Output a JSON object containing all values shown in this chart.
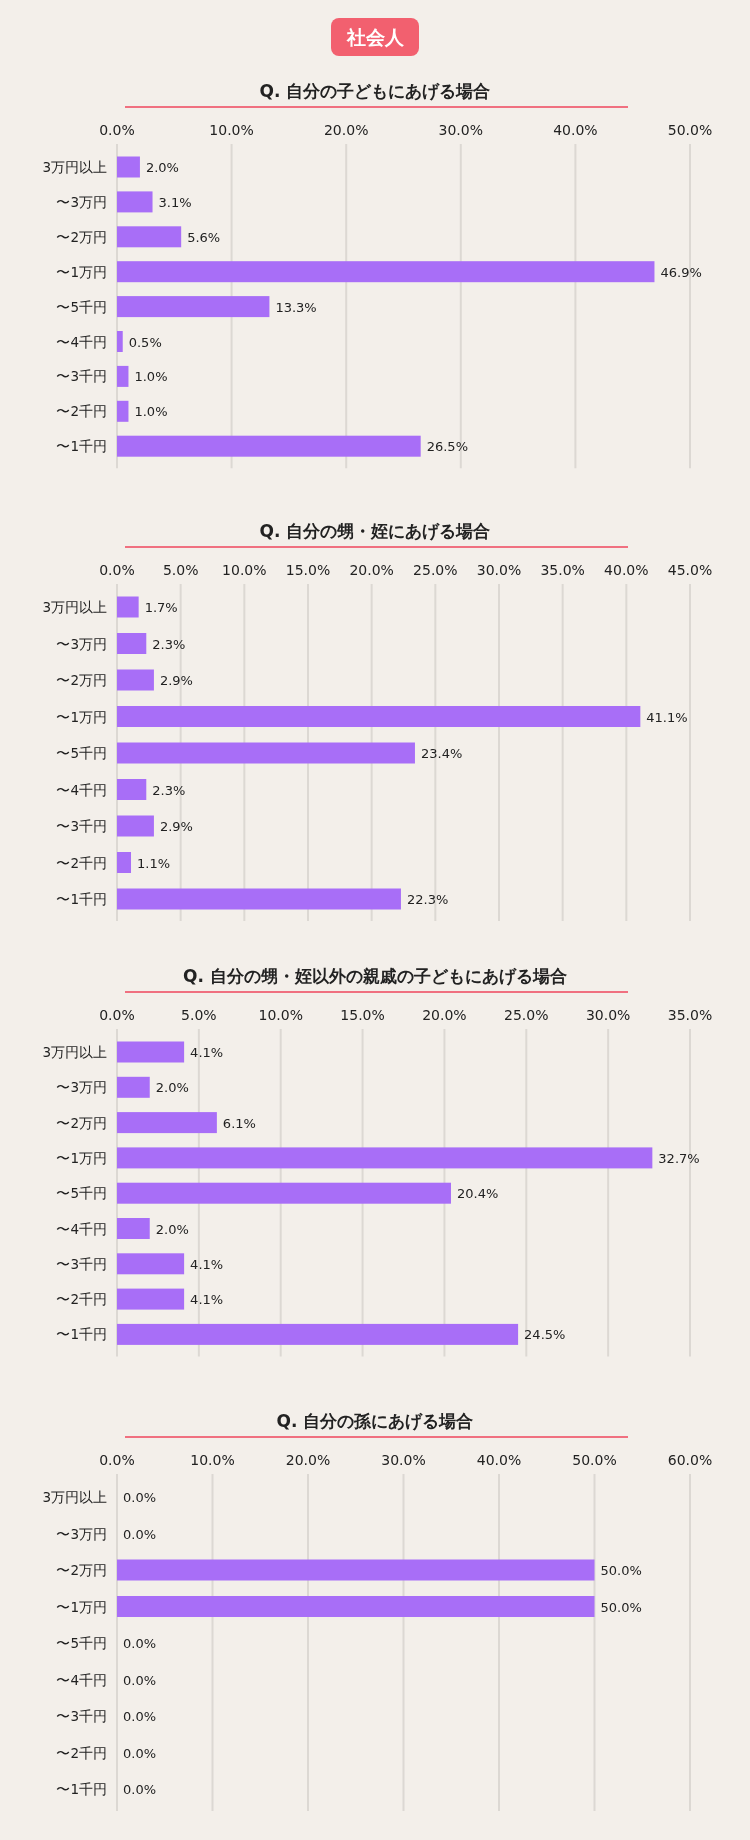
{
  "chart_data": [
    {
      "type": "bar",
      "orientation": "horizontal",
      "title": "Q. 自分の子どもにあげる場合",
      "annotations": [
        "社会人"
      ],
      "categories": [
        "3万円以上",
        "〜3万円",
        "〜2万円",
        "〜1万円",
        "〜5千円",
        "〜4千円",
        "〜3千円",
        "〜2千円",
        "〜1千円"
      ],
      "values": [
        2.0,
        3.1,
        5.6,
        46.9,
        13.3,
        0.5,
        1.0,
        1.0,
        26.5
      ],
      "value_labels": [
        "2.0%",
        "3.1%",
        "5.6%",
        "46.9%",
        "13.3%",
        "0.5%",
        "1.0%",
        "1.0%",
        "26.5%"
      ],
      "color": "#a86ef7",
      "xlim": [
        0,
        50
      ],
      "grid": "x",
      "xticks": [
        {
          "value": 0,
          "label": "0.0%"
        },
        {
          "value": 10,
          "label": "10.0%"
        },
        {
          "value": 20,
          "label": "20.0%"
        },
        {
          "value": 30,
          "label": "30.0%"
        },
        {
          "value": 40,
          "label": "40.0%"
        },
        {
          "value": 50,
          "label": "50.0%"
        }
      ]
    },
    {
      "type": "bar",
      "orientation": "horizontal",
      "title": "Q. 自分の甥・姪にあげる場合",
      "categories": [
        "3万円以上",
        "〜3万円",
        "〜2万円",
        "〜1万円",
        "〜5千円",
        "〜4千円",
        "〜3千円",
        "〜2千円",
        "〜1千円"
      ],
      "values": [
        1.7,
        2.3,
        2.9,
        41.1,
        23.4,
        2.3,
        2.9,
        1.1,
        22.3
      ],
      "value_labels": [
        "1.7%",
        "2.3%",
        "2.9%",
        "41.1%",
        "23.4%",
        "2.3%",
        "2.9%",
        "1.1%",
        "22.3%"
      ],
      "color": "#a86ef7",
      "xlim": [
        0,
        45
      ],
      "grid": "x",
      "xticks": [
        {
          "value": 0,
          "label": "0.0%"
        },
        {
          "value": 5,
          "label": "5.0%"
        },
        {
          "value": 10,
          "label": "10.0%"
        },
        {
          "value": 15,
          "label": "15.0%"
        },
        {
          "value": 20,
          "label": "20.0%"
        },
        {
          "value": 25,
          "label": "25.0%"
        },
        {
          "value": 30,
          "label": "30.0%"
        },
        {
          "value": 35,
          "label": "35.0%"
        },
        {
          "value": 40,
          "label": "40.0%"
        },
        {
          "value": 45,
          "label": "45.0%"
        }
      ]
    },
    {
      "type": "bar",
      "orientation": "horizontal",
      "title": "Q. 自分の甥・姪以外の親戚の子どもにあげる場合",
      "categories": [
        "3万円以上",
        "〜3万円",
        "〜2万円",
        "〜1万円",
        "〜5千円",
        "〜4千円",
        "〜3千円",
        "〜2千円",
        "〜1千円"
      ],
      "values": [
        4.1,
        2.0,
        6.1,
        32.7,
        20.4,
        2.0,
        4.1,
        4.1,
        24.5
      ],
      "value_labels": [
        "4.1%",
        "2.0%",
        "6.1%",
        "32.7%",
        "20.4%",
        "2.0%",
        "4.1%",
        "4.1%",
        "24.5%"
      ],
      "color": "#a86ef7",
      "xlim": [
        0,
        35
      ],
      "grid": "x",
      "xticks": [
        {
          "value": 0,
          "label": "0.0%"
        },
        {
          "value": 5,
          "label": "5.0%"
        },
        {
          "value": 10,
          "label": "10.0%"
        },
        {
          "value": 15,
          "label": "15.0%"
        },
        {
          "value": 20,
          "label": "20.0%"
        },
        {
          "value": 25,
          "label": "25.0%"
        },
        {
          "value": 30,
          "label": "30.0%"
        },
        {
          "value": 35,
          "label": "35.0%"
        }
      ]
    },
    {
      "type": "bar",
      "orientation": "horizontal",
      "title": "Q. 自分の孫にあげる場合",
      "categories": [
        "3万円以上",
        "〜3万円",
        "〜2万円",
        "〜1万円",
        "〜5千円",
        "〜4千円",
        "〜3千円",
        "〜2千円",
        "〜1千円"
      ],
      "values": [
        0.0,
        0.0,
        50.0,
        50.0,
        0.0,
        0.0,
        0.0,
        0.0,
        0.0
      ],
      "value_labels": [
        "0.0%",
        "0.0%",
        "50.0%",
        "50.0%",
        "0.0%",
        "0.0%",
        "0.0%",
        "0.0%",
        "0.0%"
      ],
      "color": "#a86ef7",
      "xlim": [
        0,
        60
      ],
      "grid": "x",
      "xticks": [
        {
          "value": 0,
          "label": "0.0%"
        },
        {
          "value": 10,
          "label": "10.0%"
        },
        {
          "value": 20,
          "label": "20.0%"
        },
        {
          "value": 30,
          "label": "30.0%"
        },
        {
          "value": 40,
          "label": "40.0%"
        },
        {
          "value": 50,
          "label": "50.0%"
        },
        {
          "value": 60,
          "label": "60.0%"
        }
      ]
    }
  ]
}
